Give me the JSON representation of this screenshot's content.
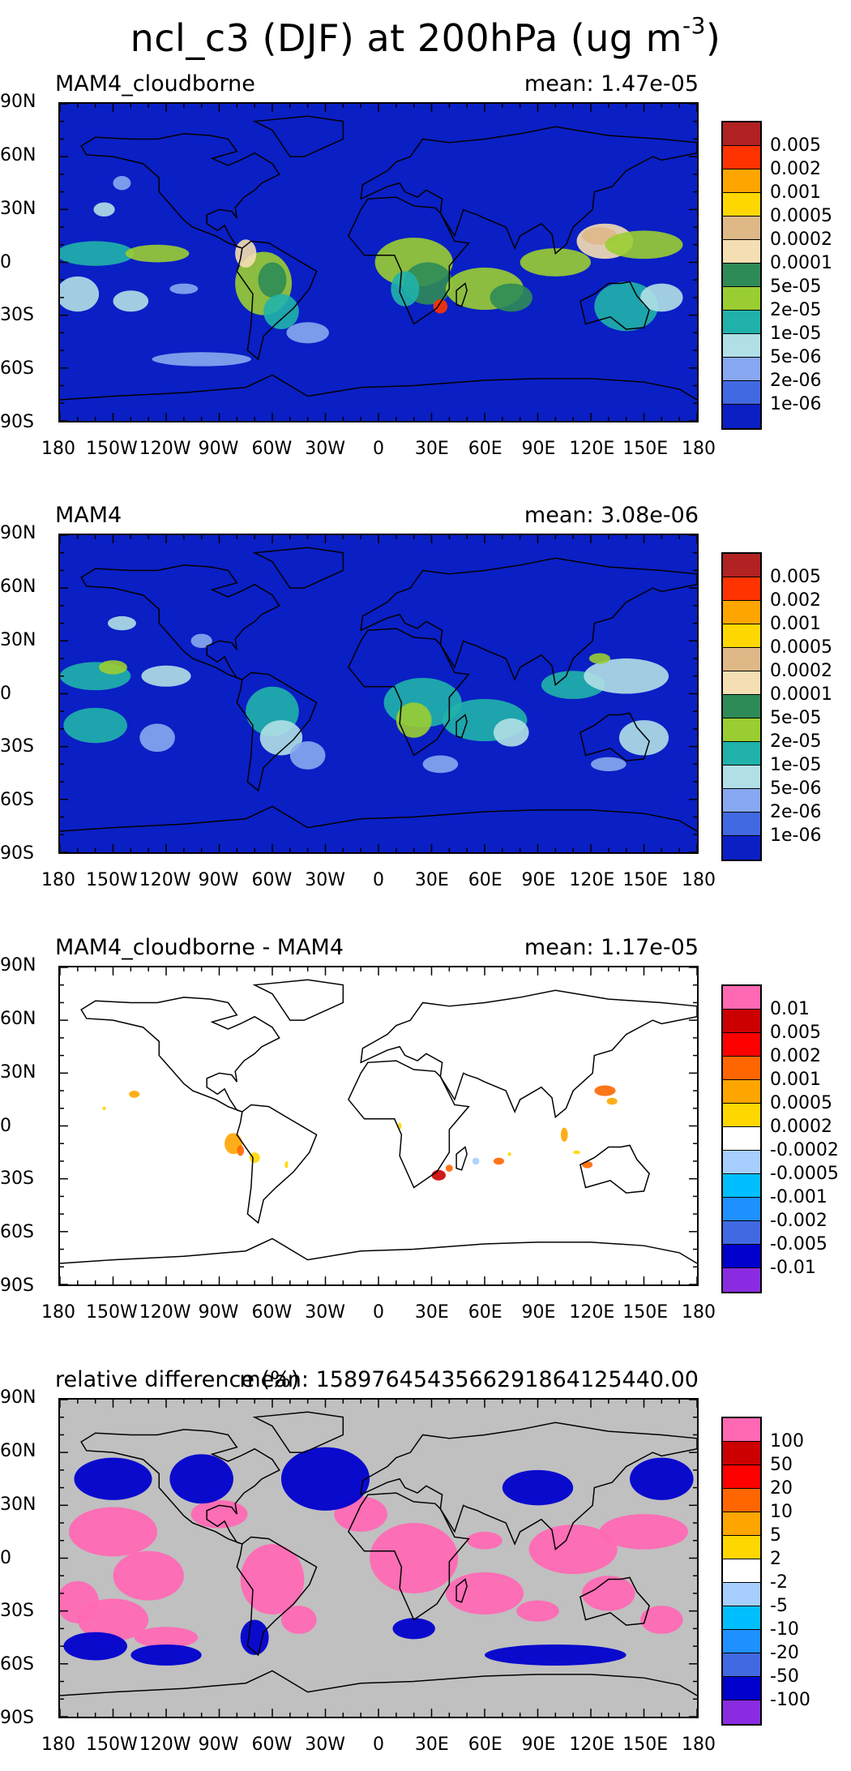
{
  "figure": {
    "title": "ncl_c3 (DJF) at 200hPa (ug m",
    "title_superscript": "-3",
    "title_close": ")"
  },
  "axes": {
    "lat_labels": [
      "90N",
      "60N",
      "30N",
      "0",
      "30S",
      "60S",
      "90S"
    ],
    "lon_labels": [
      "180",
      "150W",
      "120W",
      "90W",
      "60W",
      "30W",
      "0",
      "30E",
      "60E",
      "90E",
      "120E",
      "150E",
      "180"
    ]
  },
  "panels": [
    {
      "label": "MAM4_cloudborne",
      "mean": "mean: 1.47e-05",
      "background": "#0a1fc4",
      "colorbar": {
        "labels": [
          "0.005",
          "0.002",
          "0.001",
          "0.0005",
          "0.0002",
          "0.0001",
          "5e-05",
          "2e-05",
          "1e-05",
          "5e-06",
          "2e-06",
          "1e-06"
        ],
        "colors": [
          "#b22222",
          "#ff3300",
          "#ffa500",
          "#ffd700",
          "#deb887",
          "#f5deb3",
          "#2e8b57",
          "#9acd32",
          "#20b2aa",
          "#b0e0e6",
          "#87a8f0",
          "#4169e1",
          "#0a1fc4"
        ]
      }
    },
    {
      "label": "MAM4",
      "mean": "mean: 3.08e-06",
      "background": "#0a1fc4",
      "colorbar": {
        "labels": [
          "0.005",
          "0.002",
          "0.001",
          "0.0005",
          "0.0002",
          "0.0001",
          "5e-05",
          "2e-05",
          "1e-05",
          "5e-06",
          "2e-06",
          "1e-06"
        ],
        "colors": [
          "#b22222",
          "#ff3300",
          "#ffa500",
          "#ffd700",
          "#deb887",
          "#f5deb3",
          "#2e8b57",
          "#9acd32",
          "#20b2aa",
          "#b0e0e6",
          "#87a8f0",
          "#4169e1",
          "#0a1fc4"
        ]
      }
    },
    {
      "label": "MAM4_cloudborne - MAM4",
      "mean": "mean: 1.17e-05",
      "background": "#ffffff",
      "colorbar": {
        "labels": [
          "0.01",
          "0.005",
          "0.002",
          "0.001",
          "0.0005",
          "0.0002",
          "-0.0002",
          "-0.0005",
          "-0.001",
          "-0.002",
          "-0.005",
          "-0.01"
        ],
        "colors": [
          "#ff69b4",
          "#cc0000",
          "#ff0000",
          "#ff6600",
          "#ffa500",
          "#ffd700",
          "#ffffff",
          "#a6cfff",
          "#00bfff",
          "#1e90ff",
          "#4169e1",
          "#0000cd",
          "#8a2be2"
        ]
      }
    },
    {
      "label": "relative difference (%)",
      "mean": "mean: 1589764543566291864125440.00",
      "background": "#c0c0c0",
      "colorbar": {
        "labels": [
          "100",
          "50",
          "20",
          "10",
          "5",
          "2",
          "-2",
          "-5",
          "-10",
          "-20",
          "-50",
          "-100"
        ],
        "colors": [
          "#ff69b4",
          "#cc0000",
          "#ff0000",
          "#ff6600",
          "#ffa500",
          "#ffd700",
          "#ffffff",
          "#a6cfff",
          "#00bfff",
          "#1e90ff",
          "#4169e1",
          "#0000cd",
          "#8a2be2"
        ]
      }
    }
  ]
}
